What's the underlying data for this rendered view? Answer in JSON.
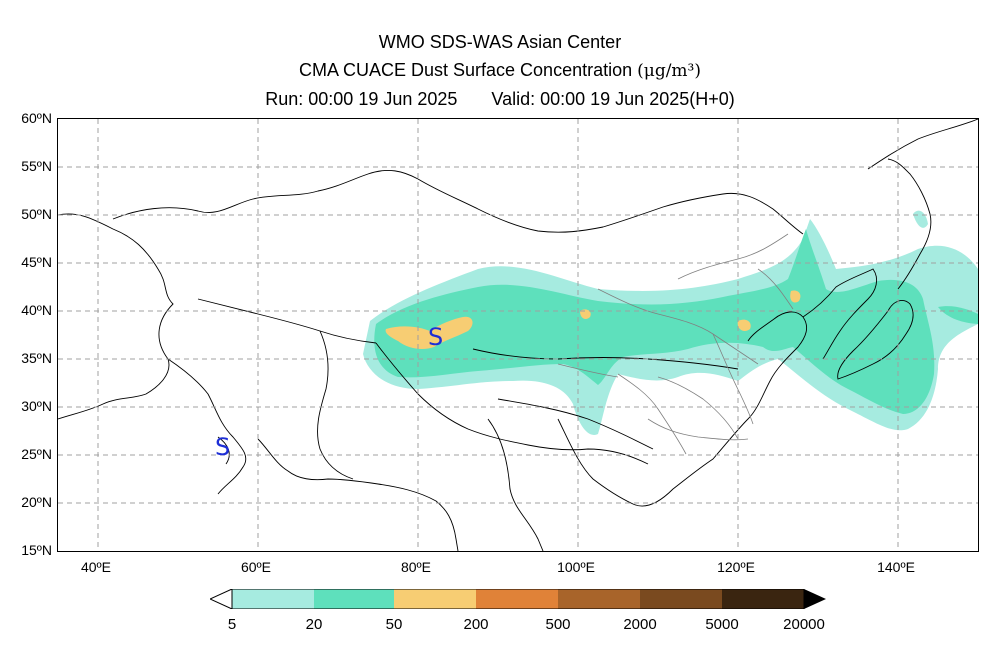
{
  "header": {
    "title_line1": "WMO SDS-WAS Asian Center",
    "title_line2": "CMA CUACE Dust Surface Concentration",
    "title_unit": "(μg/m³)",
    "run_text": "Run: 00:00 19 Jun 2025",
    "valid_text": "Valid: 00:00 19 Jun 2025(H+0)"
  },
  "map": {
    "lat_labels": [
      "60ºN",
      "55ºN",
      "50ºN",
      "45ºN",
      "40ºN",
      "35ºN",
      "30ºN",
      "25ºN",
      "20ºN",
      "15ºN"
    ],
    "lon_labels": [
      "40ºE",
      "60ºE",
      "80ºE",
      "100ºE",
      "120ºE",
      "140ºE"
    ],
    "extent": {
      "lon_min": 35,
      "lon_max": 150,
      "lat_min": 15,
      "lat_max": 60
    },
    "markers": [
      {
        "symbol": "S",
        "lon": 82.4,
        "lat": 37.1,
        "color": "#1e2fd6"
      },
      {
        "symbol": "S",
        "lon": 55.8,
        "lat": 25.8,
        "color": "#1e2fd6"
      }
    ]
  },
  "colorbar": {
    "levels": [
      "5",
      "20",
      "50",
      "200",
      "500",
      "2000",
      "5000",
      "20000"
    ],
    "colors": [
      "#a6ebe0",
      "#5ee0bc",
      "#f7cd73",
      "#e08238",
      "#a8642a",
      "#7a4a1f",
      "#3a2510"
    ]
  }
}
